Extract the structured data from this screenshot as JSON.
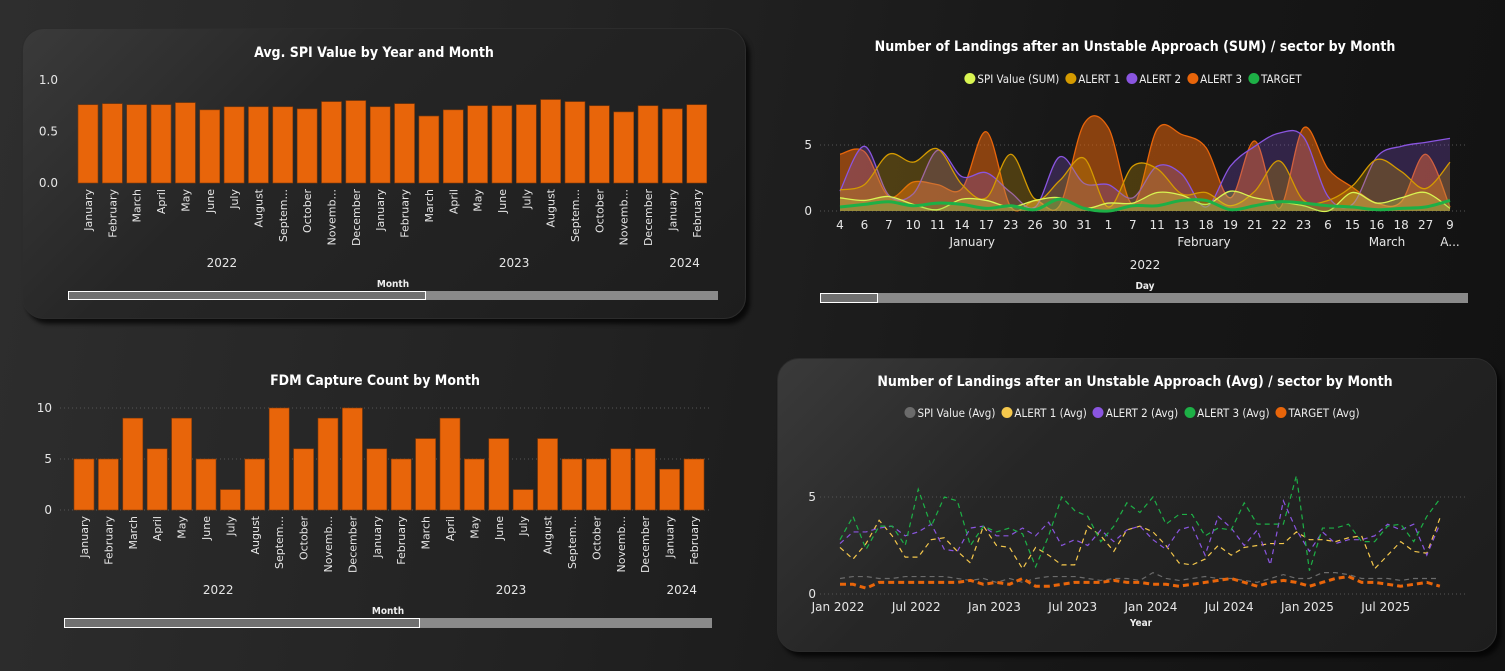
{
  "chart_data": [
    {
      "id": "spi_bar",
      "type": "bar",
      "title": "Avg. SPI Value by Year and Month",
      "xlabel": "Month",
      "ylim": [
        0,
        1.0
      ],
      "yticks": [
        "0.0",
        "0.5",
        "1.0"
      ],
      "grid": false,
      "color": "#E8650A",
      "categories": [
        "January",
        "February",
        "March",
        "April",
        "May",
        "June",
        "July",
        "August",
        "Septem...",
        "October",
        "Novemb...",
        "December",
        "January",
        "February",
        "March",
        "April",
        "May",
        "June",
        "July",
        "August",
        "Septem...",
        "October",
        "Novemb...",
        "December",
        "January",
        "February"
      ],
      "years": [
        {
          "label": "2022",
          "from": 0,
          "to": 11
        },
        {
          "label": "2023",
          "from": 12,
          "to": 23
        },
        {
          "label": "2024",
          "from": 24,
          "to": 25
        }
      ],
      "values": [
        0.76,
        0.77,
        0.76,
        0.76,
        0.78,
        0.71,
        0.74,
        0.74,
        0.74,
        0.72,
        0.79,
        0.8,
        0.74,
        0.77,
        0.65,
        0.71,
        0.75,
        0.75,
        0.76,
        0.81,
        0.79,
        0.75,
        0.69,
        0.75,
        0.72,
        0.76
      ]
    },
    {
      "id": "sum_area",
      "type": "area",
      "title": "Number of Landings after an Unstable Approach (SUM) / sector by Month",
      "xlabel": "Day",
      "ylim": [
        0,
        7
      ],
      "yticks": [
        "0",
        "5"
      ],
      "grid": true,
      "legend_position": "top-center",
      "categories": [
        "4",
        "6",
        "7",
        "10",
        "11",
        "14",
        "17",
        "23",
        "26",
        "30",
        "31",
        "1",
        "7",
        "11",
        "13",
        "18",
        "19",
        "21",
        "22",
        "23",
        "6",
        "15",
        "16",
        "18",
        "27",
        "9"
      ],
      "months": [
        {
          "label": "January",
          "at": 5.5
        },
        {
          "label": "February",
          "at": 15
        },
        {
          "label": "March",
          "at": 22.5
        },
        {
          "label": "A...",
          "at": 25
        }
      ],
      "year": "2022",
      "series": [
        {
          "name": "ALERT 3",
          "color": "#E8650A",
          "values": [
            4.3,
            4.5,
            1.1,
            2.2,
            2.0,
            1.7,
            6.0,
            0.3,
            0.8,
            0.4,
            6.6,
            6.3,
            0.5,
            6.2,
            5.8,
            4.8,
            1.0,
            5.3,
            0.2,
            6.3,
            3.2,
            1.8,
            0.6,
            0.7,
            4.3,
            0.3
          ]
        },
        {
          "name": "ALERT 2",
          "color": "#8A55E0",
          "values": [
            1.5,
            4.9,
            1.2,
            1.3,
            4.6,
            2.6,
            2.9,
            1.4,
            0.3,
            4.1,
            2.1,
            2.0,
            1.0,
            3.4,
            2.8,
            0.3,
            3.4,
            4.9,
            5.9,
            5.6,
            1.1,
            0.5,
            4.1,
            4.9,
            5.2,
            5.5
          ]
        },
        {
          "name": "ALERT 1",
          "color": "#D49A00",
          "values": [
            1.6,
            2.0,
            4.3,
            3.7,
            4.7,
            2.0,
            1.0,
            4.3,
            0.9,
            2.3,
            4.0,
            0.3,
            3.4,
            3.2,
            1.3,
            1.4,
            0.4,
            1.5,
            3.8,
            0.8,
            0.8,
            1.9,
            3.9,
            3.0,
            1.7,
            3.7
          ]
        },
        {
          "name": "SPI Value (SUM)",
          "color": "#D9F552",
          "values": [
            1.0,
            0.8,
            1.1,
            0.5,
            0.1,
            0.9,
            0.8,
            0.3,
            0.8,
            1.0,
            0.2,
            0.6,
            0.6,
            1.4,
            1.2,
            0.5,
            1.5,
            1.0,
            0.7,
            0.4,
            0.0,
            1.4,
            0.6,
            1.0,
            1.4,
            0.2
          ]
        },
        {
          "name": "TARGET",
          "color": "#1DB046",
          "values": [
            0.3,
            0.5,
            0.7,
            0.4,
            0.6,
            0.5,
            0.2,
            0.4,
            0.1,
            0.9,
            0.2,
            0.0,
            0.4,
            0.4,
            0.8,
            0.8,
            0.1,
            0.4,
            0.7,
            0.6,
            0.4,
            0.3,
            0.1,
            0.2,
            0.3,
            0.8
          ]
        }
      ],
      "legend_order": [
        "SPI Value (SUM)",
        "ALERT 1",
        "ALERT 2",
        "ALERT 3",
        "TARGET"
      ]
    },
    {
      "id": "fdm_bar",
      "type": "bar",
      "title": "FDM Capture Count by Month",
      "xlabel": "Month",
      "ylim": [
        0,
        10
      ],
      "yticks": [
        "0",
        "5",
        "10"
      ],
      "grid": true,
      "color": "#E8650A",
      "categories": [
        "January",
        "February",
        "March",
        "April",
        "May",
        "June",
        "July",
        "August",
        "Septem...",
        "October",
        "Novemb...",
        "December",
        "January",
        "February",
        "March",
        "April",
        "May",
        "June",
        "July",
        "August",
        "Septem...",
        "October",
        "Novemb...",
        "December",
        "January",
        "February"
      ],
      "years": [
        {
          "label": "2022",
          "from": 0,
          "to": 11
        },
        {
          "label": "2023",
          "from": 12,
          "to": 23
        },
        {
          "label": "2024",
          "from": 24,
          "to": 25
        }
      ],
      "values": [
        5,
        5,
        9,
        6,
        9,
        5,
        2,
        5,
        10,
        6,
        9,
        10,
        6,
        5,
        7,
        9,
        5,
        7,
        2,
        7,
        5,
        5,
        6,
        6,
        4,
        5
      ]
    },
    {
      "id": "avg_line",
      "type": "line",
      "title": "Number of Landings after an Unstable Approach (Avg) / sector by Month",
      "xlabel": "Year",
      "x_start": "Jan 2022",
      "x_end": "Nov 2025",
      "xticks": [
        "Jan 2022",
        "Jul 2022",
        "Jan 2023",
        "Jul 2023",
        "Jan 2024",
        "Jul 2024",
        "Jan 2025",
        "Jul 2025"
      ],
      "ylim": [
        0,
        6.5
      ],
      "yticks": [
        "0",
        "5"
      ],
      "grid": true,
      "line_style": "dashed",
      "legend_position": "top-center",
      "series": [
        {
          "name": "SPI Value (Avg)",
          "color": "#6B6B6B",
          "values": [
            0.8,
            0.9,
            0.9,
            0.8,
            0.8,
            0.9,
            0.9,
            0.9,
            0.9,
            0.8,
            0.7,
            0.8,
            0.6,
            0.8,
            0.6,
            0.8,
            0.9,
            0.9,
            0.9,
            0.8,
            0.7,
            0.8,
            0.8,
            0.7,
            1.1,
            0.8,
            0.7,
            0.8,
            0.9,
            0.8,
            0.8,
            0.7,
            0.6,
            0.8,
            1.0,
            0.8,
            0.8,
            1.1,
            1.1,
            1.0,
            0.8,
            0.8,
            0.8,
            0.7,
            0.8,
            0.8,
            0.8
          ]
        },
        {
          "name": "ALERT 1 (Avg)",
          "color": "#F5C84C",
          "values": [
            2.4,
            1.8,
            2.6,
            3.8,
            3.0,
            1.9,
            1.9,
            2.8,
            2.9,
            2.2,
            1.6,
            3.5,
            2.5,
            2.4,
            1.3,
            2.4,
            2.0,
            1.5,
            1.5,
            3.5,
            3.0,
            2.2,
            3.3,
            3.5,
            3.2,
            2.5,
            1.6,
            1.5,
            1.8,
            2.5,
            2.0,
            2.4,
            2.5,
            2.6,
            2.6,
            3.2,
            2.8,
            2.8,
            2.7,
            2.9,
            3.0,
            1.3,
            2.0,
            2.7,
            2.2,
            2.1,
            3.9
          ]
        },
        {
          "name": "ALERT 2 (Avg)",
          "color": "#8A55E0",
          "values": [
            2.6,
            3.2,
            3.2,
            3.4,
            3.5,
            3.0,
            3.2,
            3.6,
            2.3,
            2.2,
            3.4,
            3.5,
            3.0,
            3.0,
            3.4,
            3.0,
            3.7,
            2.5,
            2.8,
            2.5,
            3.3,
            2.7,
            3.3,
            3.5,
            2.8,
            2.3,
            3.3,
            3.5,
            2.0,
            4.0,
            3.4,
            2.5,
            3.3,
            1.5,
            4.8,
            3.3,
            2.2,
            3.2,
            2.6,
            2.8,
            2.8,
            3.0,
            3.6,
            3.3,
            3.6,
            2.0,
            3.6
          ]
        },
        {
          "name": "ALERT 3 (Avg)",
          "color": "#1DB046",
          "values": [
            2.8,
            4.0,
            2.3,
            3.5,
            3.5,
            2.5,
            5.4,
            3.5,
            5.0,
            4.8,
            2.5,
            3.5,
            3.2,
            3.4,
            3.1,
            1.4,
            3.0,
            5.0,
            4.3,
            4.0,
            2.7,
            3.5,
            4.7,
            4.2,
            5.0,
            3.6,
            4.1,
            4.1,
            3.0,
            3.4,
            3.3,
            4.7,
            3.6,
            3.6,
            3.6,
            6.1,
            1.2,
            3.4,
            3.4,
            3.6,
            2.7,
            2.7,
            3.5,
            3.6,
            2.7,
            4.0,
            4.9
          ]
        },
        {
          "name": "TARGET (Avg)",
          "color": "#E8650A",
          "values": [
            0.5,
            0.5,
            0.3,
            0.6,
            0.6,
            0.6,
            0.6,
            0.6,
            0.6,
            0.6,
            0.7,
            0.5,
            0.6,
            0.5,
            0.8,
            0.4,
            0.4,
            0.5,
            0.6,
            0.6,
            0.6,
            0.7,
            0.6,
            0.6,
            0.5,
            0.5,
            0.4,
            0.5,
            0.6,
            0.7,
            0.8,
            0.6,
            0.4,
            0.6,
            0.7,
            0.6,
            0.4,
            0.6,
            0.8,
            0.9,
            0.6,
            0.6,
            0.5,
            0.4,
            0.5,
            0.6,
            0.4
          ]
        }
      ]
    }
  ],
  "scrollbars": {
    "spi_bar": 0.55,
    "fdm_bar": 0.55,
    "sum_area": 0.09
  }
}
